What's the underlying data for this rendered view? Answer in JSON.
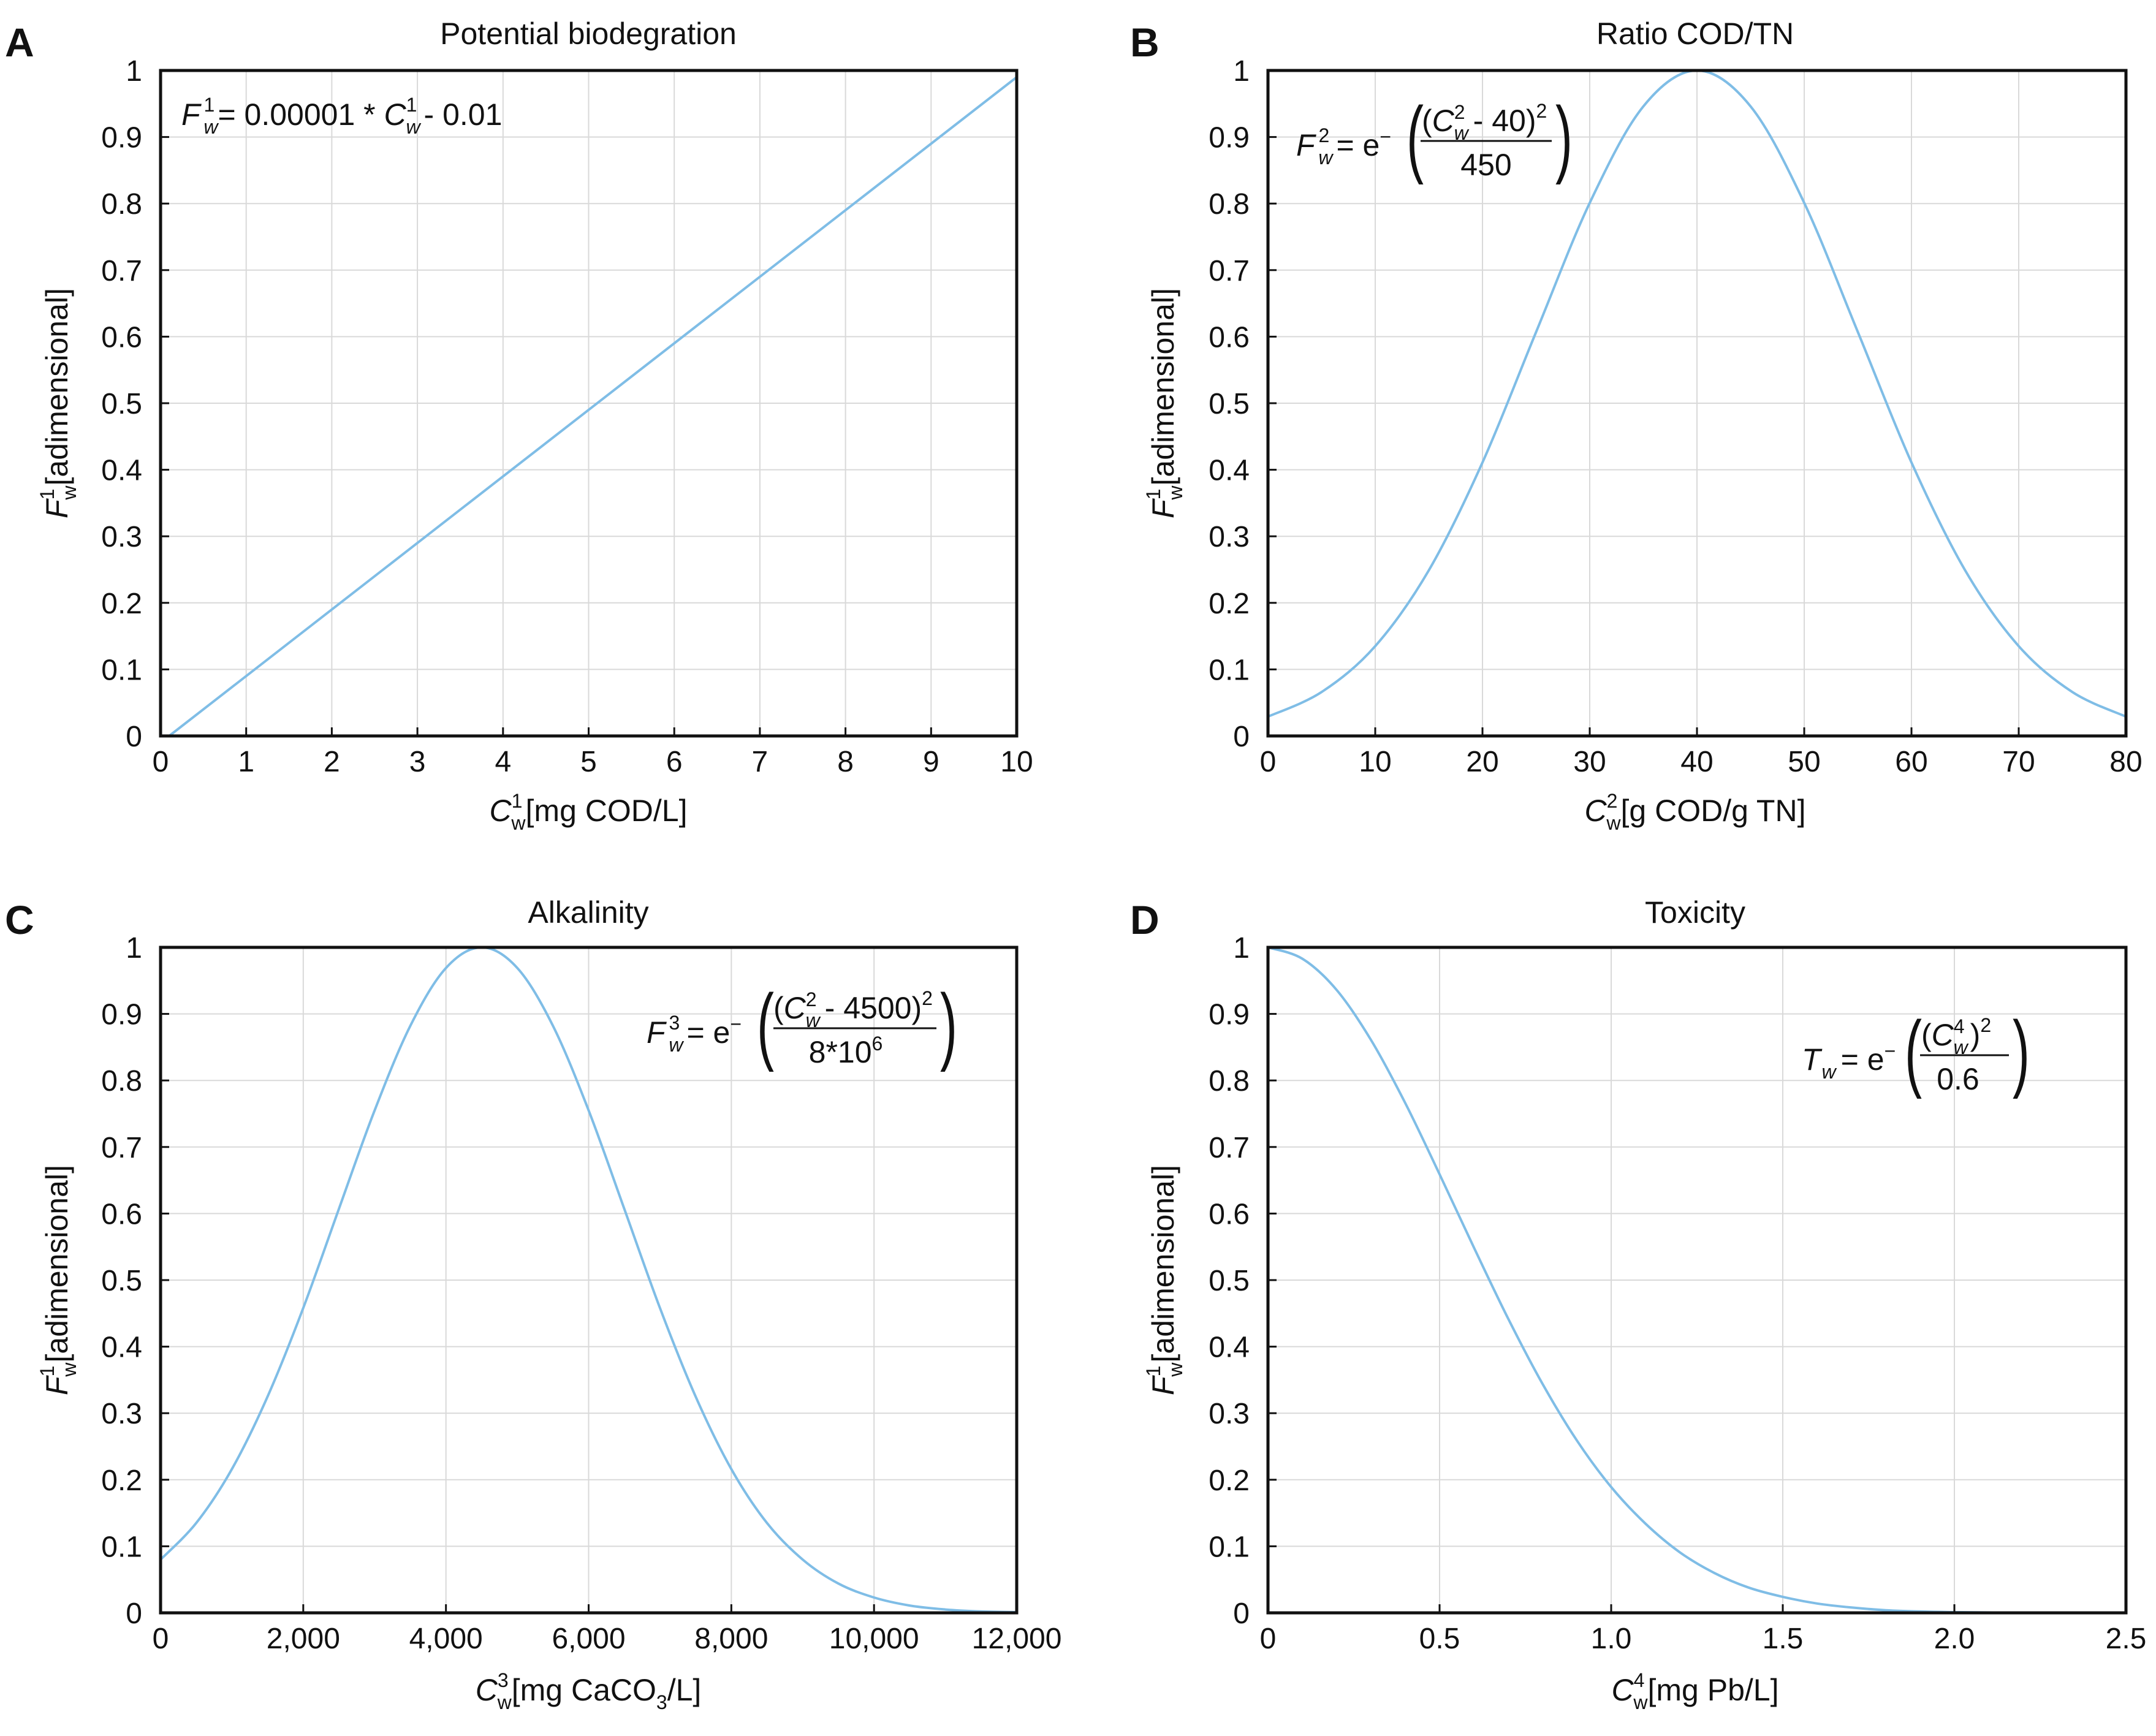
{
  "figure": {
    "accent_color": "#7fbde6"
  },
  "chart_data": [
    {
      "panel": "A",
      "type": "line",
      "title": "Potential biodegration",
      "xlabel_main": "C",
      "xlabel_sup": "1",
      "xlabel_sub": "w",
      "xlabel_rest": "[mg COD/L]",
      "ylabel_main": "F",
      "ylabel_sup": "1",
      "ylabel_sub": "w",
      "ylabel_rest": "[adimensional]",
      "xlim": [
        0,
        10
      ],
      "ylim": [
        0,
        1
      ],
      "xticks": [
        0,
        1,
        2,
        3,
        4,
        5,
        6,
        7,
        8,
        9,
        10
      ],
      "xtick_labels": [
        "0",
        "1",
        "2",
        "3",
        "4",
        "5",
        "6",
        "7",
        "8",
        "9",
        "10"
      ],
      "yticks": [
        0,
        0.1,
        0.2,
        0.3,
        0.4,
        0.5,
        0.6,
        0.7,
        0.8,
        0.9,
        1
      ],
      "ytick_labels": [
        "0",
        "0.1",
        "0.2",
        "0.3",
        "0.4",
        "0.5",
        "0.6",
        "0.7",
        "0.8",
        "0.9",
        "1"
      ],
      "x": [
        0.1,
        10
      ],
      "y": [
        0.0,
        0.99
      ],
      "equation": {
        "lhs": "F",
        "lhs_sup": "1",
        "lhs_sub": "w",
        "rhs": "= 0.00001 * ",
        "var": "C",
        "var_sup": "1",
        "var_sub": "w",
        "tail": "- 0.01"
      }
    },
    {
      "panel": "B",
      "type": "line",
      "title": "Ratio COD/TN",
      "xlabel_main": "C",
      "xlabel_sup": "2",
      "xlabel_sub": "w",
      "xlabel_rest": "[g COD/g TN]",
      "ylabel_main": "F",
      "ylabel_sup": "1",
      "ylabel_sub": "w",
      "ylabel_rest": "[adimensional]",
      "xlim": [
        0,
        80
      ],
      "ylim": [
        0,
        1
      ],
      "xticks": [
        0,
        10,
        20,
        30,
        40,
        50,
        60,
        70,
        80
      ],
      "xtick_labels": [
        "0",
        "10",
        "20",
        "30",
        "40",
        "50",
        "60",
        "70",
        "80"
      ],
      "yticks": [
        0,
        0.1,
        0.2,
        0.3,
        0.4,
        0.5,
        0.6,
        0.7,
        0.8,
        0.9,
        1
      ],
      "ytick_labels": [
        "0",
        "0.1",
        "0.2",
        "0.3",
        "0.4",
        "0.5",
        "0.6",
        "0.7",
        "0.8",
        "0.9",
        "1"
      ],
      "x": [
        0,
        5,
        10,
        15,
        20,
        25,
        30,
        35,
        40,
        45,
        50,
        55,
        60,
        65,
        70,
        75,
        80
      ],
      "y": [
        0.029,
        0.066,
        0.135,
        0.249,
        0.411,
        0.607,
        0.801,
        0.946,
        1.0,
        0.946,
        0.801,
        0.607,
        0.411,
        0.249,
        0.135,
        0.066,
        0.029
      ],
      "equation": {
        "lhs": "F",
        "lhs_sup": "2",
        "lhs_sub": "w",
        "eq_e": "= e",
        "minus": "−",
        "num_open": "(",
        "num_var": "C",
        "num_var_sup": "2",
        "num_var_sub": "w",
        "num_rest": "- 40)",
        "num_pow": "2",
        "den": "450"
      }
    },
    {
      "panel": "C",
      "type": "line",
      "title": "Alkalinity",
      "xlabel_main": "C",
      "xlabel_sup": "3",
      "xlabel_sub": "w",
      "xlabel_rest": "[mg CaCO",
      "xlabel_sub2": "3",
      "xlabel_end": "/L]",
      "ylabel_main": "F",
      "ylabel_sup": "1",
      "ylabel_sub": "w",
      "ylabel_rest": "[adimensional]",
      "xlim": [
        0,
        12000
      ],
      "ylim": [
        0,
        1
      ],
      "xticks": [
        0,
        2000,
        4000,
        6000,
        8000,
        10000,
        12000
      ],
      "xtick_labels": [
        "0",
        "2,000",
        "4,000",
        "6,000",
        "8,000",
        "10,000",
        "12,000"
      ],
      "yticks": [
        0,
        0.1,
        0.2,
        0.3,
        0.4,
        0.5,
        0.6,
        0.7,
        0.8,
        0.9,
        1
      ],
      "ytick_labels": [
        "0",
        "0.1",
        "0.2",
        "0.3",
        "0.4",
        "0.5",
        "0.6",
        "0.7",
        "0.8",
        "0.9",
        "1"
      ],
      "x": [
        0,
        500,
        1000,
        1500,
        2000,
        2500,
        3000,
        3500,
        4000,
        4500,
        5000,
        5500,
        6000,
        6500,
        7000,
        7500,
        8000,
        8500,
        9000,
        9500,
        10000,
        10500,
        11000,
        11500,
        12000
      ],
      "y": [
        0.08,
        0.135,
        0.216,
        0.325,
        0.458,
        0.607,
        0.755,
        0.882,
        0.969,
        1.0,
        0.969,
        0.882,
        0.755,
        0.607,
        0.458,
        0.325,
        0.216,
        0.135,
        0.08,
        0.044,
        0.023,
        0.011,
        0.005,
        0.002,
        0.001
      ],
      "equation": {
        "lhs": "F",
        "lhs_sup": "3",
        "lhs_sub": "w",
        "eq_e": "= e",
        "minus": "−",
        "num_open": "(",
        "num_var": "C",
        "num_var_sup": "2",
        "num_var_sub": "w",
        "num_rest": "- 4500)",
        "num_pow": "2",
        "den": "8*10",
        "den_sup": "6"
      }
    },
    {
      "panel": "D",
      "type": "line",
      "title": "Toxicity",
      "xlabel_main": "C",
      "xlabel_sup": "4",
      "xlabel_sub": "w",
      "xlabel_rest": "[mg Pb/L]",
      "ylabel_main": "F",
      "ylabel_sup": "1",
      "ylabel_sub": "w",
      "ylabel_rest": "[adimensional]",
      "xlim": [
        0,
        2.5
      ],
      "ylim": [
        0,
        1
      ],
      "xticks": [
        0,
        0.5,
        1.0,
        1.5,
        2.0,
        2.5
      ],
      "xtick_labels": [
        "0",
        "0.5",
        "1.0",
        "1.5",
        "2.0",
        "2.5"
      ],
      "yticks": [
        0,
        0.1,
        0.2,
        0.3,
        0.4,
        0.5,
        0.6,
        0.7,
        0.8,
        0.9,
        1
      ],
      "ytick_labels": [
        "0",
        "0.1",
        "0.2",
        "0.3",
        "0.4",
        "0.5",
        "0.6",
        "0.7",
        "0.8",
        "0.9",
        "1"
      ],
      "x": [
        0,
        0.1,
        0.2,
        0.3,
        0.4,
        0.5,
        0.6,
        0.7,
        0.8,
        0.9,
        1.0,
        1.1,
        1.2,
        1.3,
        1.4,
        1.5,
        1.6,
        1.7,
        1.8,
        1.9,
        2.0,
        2.25,
        2.5
      ],
      "y": [
        1.0,
        0.983,
        0.936,
        0.861,
        0.766,
        0.659,
        0.549,
        0.442,
        0.344,
        0.259,
        0.189,
        0.134,
        0.091,
        0.06,
        0.038,
        0.024,
        0.014,
        0.008,
        0.004,
        0.002,
        0.001,
        0.0,
        0.0
      ],
      "equation": {
        "lhs": "T",
        "lhs_sub": "w",
        "eq_e": "= e",
        "minus": "−",
        "num_open": "(",
        "num_var": "C",
        "num_var_sup": "4",
        "num_var_sub": "w",
        "num_rest": ")",
        "num_pow": "2",
        "den": "0.6"
      }
    }
  ]
}
